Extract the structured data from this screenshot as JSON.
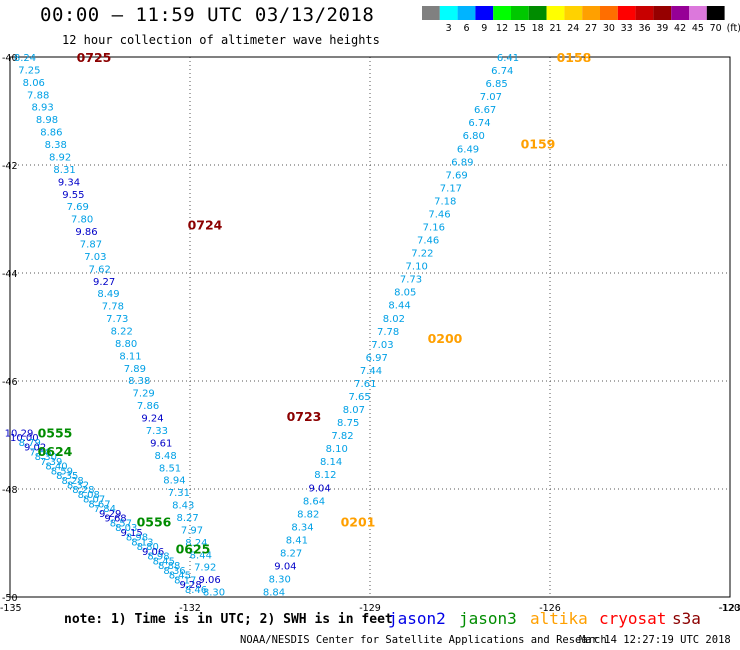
{
  "header": {
    "title": "00:00 – 11:59 UTC 03/13/2018",
    "subtitle": "12 hour collection of altimeter wave heights"
  },
  "colorbar": {
    "unit": "(ft)",
    "bins": [
      {
        "label": "",
        "color": "#808080"
      },
      {
        "label": "3",
        "color": "#00ffff"
      },
      {
        "label": "6",
        "color": "#00b4ff"
      },
      {
        "label": "9",
        "color": "#0000ff"
      },
      {
        "label": "12",
        "color": "#00ff00"
      },
      {
        "label": "15",
        "color": "#00c800"
      },
      {
        "label": "18",
        "color": "#008c00"
      },
      {
        "label": "21",
        "color": "#ffff00"
      },
      {
        "label": "24",
        "color": "#ffd200"
      },
      {
        "label": "27",
        "color": "#ffa000"
      },
      {
        "label": "30",
        "color": "#ff6e00"
      },
      {
        "label": "33",
        "color": "#ff0000"
      },
      {
        "label": "36",
        "color": "#c80000"
      },
      {
        "label": "39",
        "color": "#960000"
      },
      {
        "label": "42",
        "color": "#960096"
      },
      {
        "label": "45",
        "color": "#dc78dc"
      },
      {
        "label": "70",
        "color": "#000000"
      }
    ]
  },
  "colors": {
    "jason2": "#0000e6",
    "jason3": "#008c00",
    "altika": "#ffa000",
    "cryosat": "#ff0000",
    "s3a": "#8b0000",
    "wave_text": "#00a0e6",
    "wave_text_high": "#0000c8"
  },
  "map": {
    "lat_range": [
      -50,
      -40
    ],
    "lon_range": [
      -135,
      -123
    ],
    "lat_ticks": [
      {
        "value": -40,
        "label": "-40"
      },
      {
        "value": -42,
        "label": "-42"
      },
      {
        "value": -44,
        "label": "-44"
      },
      {
        "value": -46,
        "label": "-46"
      },
      {
        "value": -48,
        "label": "-48"
      },
      {
        "value": -50,
        "label": "-50"
      }
    ],
    "lon_ticks": [
      {
        "value": -135,
        "label": "-135"
      },
      {
        "value": -132,
        "label": "-132"
      },
      {
        "value": -129,
        "label": "-129"
      },
      {
        "value": -126,
        "label": "-126"
      },
      {
        "value": -123,
        "label": "-123"
      },
      {
        "value": -120,
        "label": "-120"
      }
    ]
  },
  "tracks": [
    {
      "satellite": "s3a",
      "times": [
        {
          "label": "0725",
          "lat": -40.0,
          "lon": -133.6
        },
        {
          "label": "0724",
          "lat": -43.1,
          "lon": -131.75
        },
        {
          "label": "0723",
          "lat": -46.65,
          "lon": -130.1
        }
      ],
      "start": {
        "lat": -40.0,
        "lon": -134.75
      },
      "end": {
        "lat": -49.9,
        "lon": -131.6
      },
      "heights": [
        "8.24",
        "7.25",
        "8.06",
        "7.88",
        "8.93",
        "8.98",
        "8.86",
        "8.38",
        "8.92",
        "8.31",
        "9.34",
        "9.55",
        "7.69",
        "7.80",
        "9.86",
        "7.87",
        "7.03",
        "7.62",
        "9.27",
        "8.49",
        "7.78",
        "7.73",
        "8.22",
        "8.80",
        "8.11",
        "7.89",
        "8.38",
        "7.29",
        "7.86",
        "9.24",
        "7.33",
        "9.61",
        "8.48",
        "8.51",
        "8.94",
        "7.31",
        "8.43",
        "8.27",
        "7.97",
        "8.24",
        "8.44",
        "7.92",
        "9.06",
        "8.30"
      ]
    },
    {
      "satellite": "altika",
      "times": [
        {
          "label": "0158",
          "lat": -40.0,
          "lon": -125.6
        },
        {
          "label": "0159",
          "lat": -41.6,
          "lon": -126.2
        },
        {
          "label": "0200",
          "lat": -45.2,
          "lon": -127.75
        },
        {
          "label": "0201",
          "lat": -48.6,
          "lon": -129.2
        }
      ],
      "start": {
        "lat": -40.0,
        "lon": -126.7
      },
      "end": {
        "lat": -49.9,
        "lon": -130.6
      },
      "heights": [
        "6.41",
        "6.74",
        "6.85",
        "7.07",
        "6.67",
        "6.74",
        "6.80",
        "6.49",
        "6.89",
        "7.69",
        "7.17",
        "7.18",
        "7.46",
        "7.16",
        "7.46",
        "7.22",
        "7.10",
        "7.73",
        "8.05",
        "8.44",
        "8.02",
        "7.78",
        "7.03",
        "6.97",
        "7.44",
        "7.61",
        "7.65",
        "8.07",
        "8.75",
        "7.82",
        "8.10",
        "8.14",
        "8.12",
        "9.04",
        "8.64",
        "8.82",
        "8.34",
        "8.41",
        "8.27",
        "9.04",
        "8.30",
        "8.84"
      ]
    },
    {
      "satellite": "jason3",
      "times": [
        {
          "label": "0555",
          "lat": -46.95,
          "lon": -134.25
        },
        {
          "label": "0624",
          "lat": -47.3,
          "lon": -134.25
        },
        {
          "label": "0556",
          "lat": -48.6,
          "lon": -132.6
        },
        {
          "label": "0625",
          "lat": -49.1,
          "lon": -131.95
        }
      ],
      "start": {
        "lat": -46.95,
        "lon": -134.85
      },
      "end": {
        "lat": -49.85,
        "lon": -131.9
      },
      "heights": [
        "10.29",
        "10.00",
        "8.79",
        "9.02",
        "7.88",
        "8.30",
        "7.39",
        "8.40",
        "8.59",
        "8.35",
        "8.28",
        "8.32",
        "8.28",
        "8.08",
        "8.07",
        "8.67",
        "7.84",
        "9.29",
        "9.68",
        "8.57",
        "8.03",
        "9.15",
        "8.98",
        "8.13",
        "8.80",
        "9.06",
        "8.98",
        "8.45",
        "8.88",
        "8.36",
        "8.45",
        "8.17",
        "9.28",
        "8.46"
      ]
    }
  ],
  "legend": {
    "note": "note: 1) Time is in UTC; 2) SWH is in feet",
    "satellites": [
      {
        "key": "jason2",
        "label": "jason2"
      },
      {
        "key": "jason3",
        "label": "jason3"
      },
      {
        "key": "altika",
        "label": "altika"
      },
      {
        "key": "cryosat",
        "label": "cryosat"
      },
      {
        "key": "s3a",
        "label": "s3a"
      }
    ]
  },
  "footer": {
    "credit": "NOAA/NESDIS Center for Satellite Applications and Research",
    "timestamp": "Mar 14 12:27:19 UTC 2018"
  }
}
